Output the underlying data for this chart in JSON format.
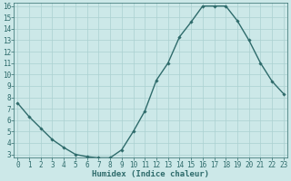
{
  "xlabel": "Humidex (Indice chaleur)",
  "x": [
    0,
    1,
    2,
    3,
    4,
    5,
    6,
    7,
    8,
    9,
    10,
    11,
    12,
    13,
    14,
    15,
    16,
    17,
    18,
    19,
    20,
    21,
    22,
    23
  ],
  "y": [
    7.5,
    6.3,
    5.3,
    4.3,
    3.6,
    3.0,
    2.8,
    2.7,
    2.7,
    3.4,
    5.0,
    6.8,
    9.5,
    11.0,
    13.3,
    14.6,
    16.0,
    16.0,
    16.0,
    14.7,
    13.0,
    11.0,
    9.4,
    8.3
  ],
  "line_color": "#2e6b6b",
  "marker": "D",
  "marker_size": 1.8,
  "bg_color": "#cce8e8",
  "grid_color": "#aad0d0",
  "tick_label_color": "#2e6b6b",
  "axis_label_color": "#2e6b6b",
  "ylim": [
    3,
    16
  ],
  "yticks": [
    3,
    4,
    5,
    6,
    7,
    8,
    9,
    10,
    11,
    12,
    13,
    14,
    15,
    16
  ],
  "xlim": [
    0,
    23
  ],
  "xticks": [
    0,
    1,
    2,
    3,
    4,
    5,
    6,
    7,
    8,
    9,
    10,
    11,
    12,
    13,
    14,
    15,
    16,
    17,
    18,
    19,
    20,
    21,
    22,
    23
  ],
  "xlabel_fontsize": 6.5,
  "tick_fontsize": 5.5,
  "line_width": 1.0
}
